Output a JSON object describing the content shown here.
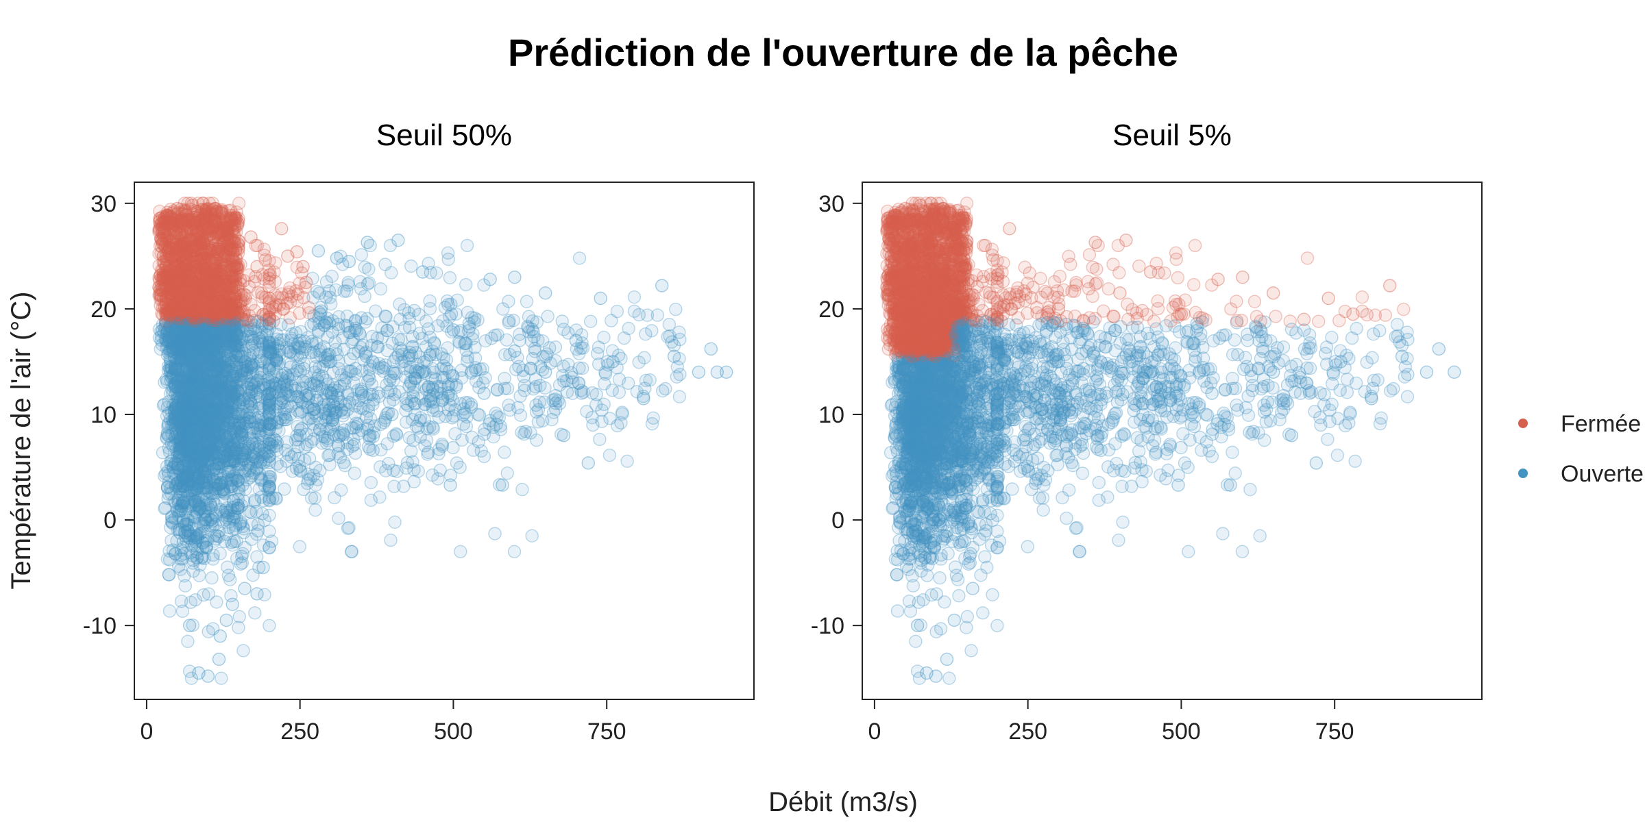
{
  "title": "Prédiction de l'ouverture de la pêche",
  "xlabel": "Débit (m3/s)",
  "ylabel": "Température de l'air (°C)",
  "legend": [
    {
      "label": "Fermée",
      "color": "#d6604d"
    },
    {
      "label": "Ouverte",
      "color": "#4393c3"
    }
  ],
  "chart_data": [
    {
      "type": "scatter",
      "title": "Seuil 50%",
      "xlim": [
        -20,
        990
      ],
      "ylim": [
        -17,
        32
      ],
      "x_ticks": [
        0,
        250,
        500,
        750
      ],
      "y_ticks": [
        -10,
        0,
        10,
        20,
        30
      ],
      "classification_rule": "Fermée where température ≥ 18.8 °C and débit < 265 m3/s; Ouverte otherwise",
      "series": [
        {
          "name": "Fermée",
          "color": "#d6604d",
          "points": [
            [
              50,
              29.5
            ],
            [
              75,
              29.8
            ],
            [
              90,
              29.4
            ],
            [
              110,
              28.3
            ],
            [
              140,
              27.5
            ],
            [
              170,
              26.8
            ],
            [
              220,
              27.6
            ],
            [
              230,
              25.0
            ],
            [
              245,
              25.4
            ],
            [
              255,
              24.0
            ],
            [
              260,
              22.5
            ],
            [
              30,
              22.0
            ],
            [
              40,
              20.0
            ],
            [
              60,
              24.0
            ],
            [
              80,
              21.0
            ],
            [
              100,
              23.5
            ],
            [
              120,
              20.0
            ],
            [
              150,
              22.0
            ],
            [
              180,
              24.0
            ],
            [
              200,
              21.0
            ]
          ]
        },
        {
          "name": "Ouverte",
          "color": "#4393c3",
          "points": [
            [
              70,
              -10.0
            ],
            [
              85,
              -14.5
            ],
            [
              100,
              -14.8
            ],
            [
              118,
              -13.2
            ],
            [
              120,
              -11.0
            ],
            [
              130,
              -9.5
            ],
            [
              140,
              -8.0
            ],
            [
              160,
              -6.5
            ],
            [
              180,
              -7.0
            ],
            [
              190,
              -4.5
            ],
            [
              280,
              25.5
            ],
            [
              310,
              24.8
            ],
            [
              330,
              24.5
            ],
            [
              360,
              26.3
            ],
            [
              410,
              26.5
            ],
            [
              450,
              23.5
            ],
            [
              495,
              3.3
            ],
            [
              560,
              22.8
            ],
            [
              580,
              3.3
            ],
            [
              600,
              23.0
            ],
            [
              650,
              21.5
            ],
            [
              680,
              8.0
            ],
            [
              720,
              5.4
            ],
            [
              740,
              21.0
            ],
            [
              760,
              15.0
            ],
            [
              810,
              11.5
            ],
            [
              840,
              22.2
            ],
            [
              860,
              15.5
            ],
            [
              900,
              14.0
            ],
            [
              920,
              16.2
            ],
            [
              930,
              14.0
            ],
            [
              945,
              14.0
            ],
            [
              200,
              12.0
            ],
            [
              250,
              8.0
            ],
            [
              300,
              15.0
            ],
            [
              350,
              12.0
            ],
            [
              400,
              10.0
            ],
            [
              450,
              14.0
            ],
            [
              500,
              18.0
            ],
            [
              550,
              12.0
            ],
            [
              600,
              16.0
            ],
            [
              650,
              14.0
            ],
            [
              700,
              17.0
            ]
          ]
        }
      ]
    },
    {
      "type": "scatter",
      "title": "Seuil 5%",
      "xlim": [
        -20,
        990
      ],
      "ylim": [
        -17,
        32
      ],
      "x_ticks": [
        0,
        250,
        500,
        750
      ],
      "y_ticks": [
        -10,
        0,
        10,
        20,
        30
      ],
      "classification_rule": "Fermée where température ≥ 18.8 °C, or température ≥ 15.5 °C and débit < 130 m3/s; Ouverte otherwise",
      "series": [
        {
          "name": "Fermée",
          "color": "#d6604d",
          "points": [
            [
              50,
              29.5
            ],
            [
              75,
              29.8
            ],
            [
              90,
              29.4
            ],
            [
              110,
              28.3
            ],
            [
              140,
              27.5
            ],
            [
              220,
              27.6
            ],
            [
              360,
              26.3
            ],
            [
              410,
              26.5
            ],
            [
              450,
              23.5
            ],
            [
              560,
              22.8
            ],
            [
              600,
              23.0
            ],
            [
              650,
              21.5
            ],
            [
              740,
              21.0
            ],
            [
              840,
              22.2
            ],
            [
              60,
              17.0
            ],
            [
              90,
              16.0
            ],
            [
              110,
              16.5
            ],
            [
              300,
              20.0
            ],
            [
              400,
              21.5
            ],
            [
              500,
              19.5
            ],
            [
              700,
              19.0
            ],
            [
              780,
              19.5
            ]
          ]
        },
        {
          "name": "Ouverte",
          "color": "#4393c3",
          "points": [
            [
              70,
              -10.0
            ],
            [
              85,
              -14.5
            ],
            [
              100,
              -14.8
            ],
            [
              118,
              -13.2
            ],
            [
              130,
              -9.5
            ],
            [
              160,
              -6.5
            ],
            [
              495,
              3.3
            ],
            [
              580,
              3.3
            ],
            [
              680,
              8.0
            ],
            [
              720,
              5.4
            ],
            [
              760,
              15.0
            ],
            [
              810,
              11.5
            ],
            [
              860,
              15.5
            ],
            [
              900,
              14.0
            ],
            [
              920,
              16.2
            ],
            [
              945,
              14.0
            ],
            [
              200,
              12.0
            ],
            [
              300,
              15.0
            ],
            [
              450,
              14.0
            ],
            [
              550,
              12.0
            ],
            [
              650,
              14.0
            ]
          ]
        }
      ]
    }
  ]
}
